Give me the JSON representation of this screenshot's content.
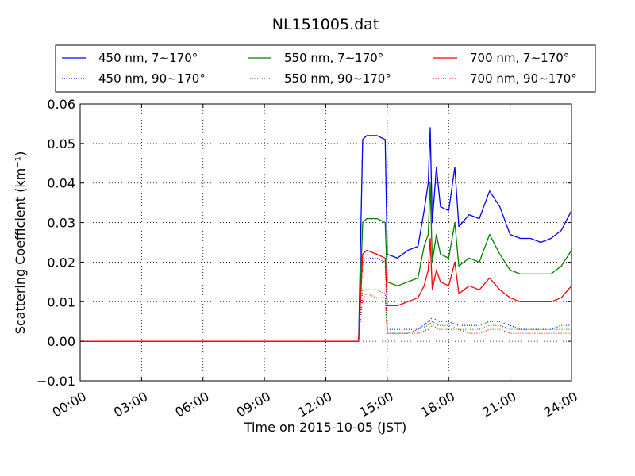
{
  "chart_data": {
    "type": "line",
    "title": "NL151005.dat",
    "xlabel": "Time on 2015-10-05 (JST)",
    "ylabel": "Scattering Coefficient (km⁻¹)",
    "x_unit": "hours",
    "xlim": [
      0,
      24
    ],
    "ylim": [
      -0.01,
      0.06
    ],
    "x_ticks": [
      0,
      3,
      6,
      9,
      12,
      15,
      18,
      21,
      24
    ],
    "x_tick_labels": [
      "00:00",
      "03:00",
      "06:00",
      "09:00",
      "12:00",
      "15:00",
      "18:00",
      "21:00",
      "24:00"
    ],
    "y_ticks": [
      -0.01,
      0.0,
      0.01,
      0.02,
      0.03,
      0.04,
      0.05,
      0.06
    ],
    "y_tick_labels": [
      "−0.01",
      "0.00",
      "0.01",
      "0.02",
      "0.03",
      "0.04",
      "0.05",
      "0.06"
    ],
    "grid": true,
    "legend_position": "top",
    "series": [
      {
        "name": "450 nm, 7∼170°",
        "color": "#0000ff",
        "style": "solid",
        "x": [
          0,
          13.6,
          13.8,
          14.0,
          14.5,
          14.9,
          15.0,
          15.5,
          16.0,
          16.5,
          16.8,
          17.0,
          17.1,
          17.2,
          17.4,
          17.6,
          18.0,
          18.3,
          18.5,
          19.0,
          19.5,
          20.0,
          20.5,
          21.0,
          21.5,
          22.0,
          22.5,
          23.0,
          23.5,
          24.0
        ],
        "y": [
          0.0,
          0.0,
          0.051,
          0.052,
          0.052,
          0.051,
          0.022,
          0.021,
          0.023,
          0.024,
          0.033,
          0.04,
          0.054,
          0.03,
          0.044,
          0.034,
          0.033,
          0.044,
          0.029,
          0.032,
          0.031,
          0.038,
          0.034,
          0.027,
          0.026,
          0.026,
          0.025,
          0.026,
          0.028,
          0.033
        ]
      },
      {
        "name": "550 nm, 7∼170°",
        "color": "#008000",
        "style": "solid",
        "x": [
          0,
          13.6,
          13.8,
          14.0,
          14.5,
          14.9,
          15.0,
          15.5,
          16.0,
          16.5,
          16.8,
          17.0,
          17.1,
          17.2,
          17.4,
          17.6,
          18.0,
          18.3,
          18.5,
          19.0,
          19.5,
          20.0,
          20.5,
          21.0,
          21.5,
          22.0,
          22.5,
          23.0,
          23.5,
          24.0
        ],
        "y": [
          0.0,
          0.0,
          0.03,
          0.031,
          0.031,
          0.03,
          0.015,
          0.014,
          0.015,
          0.016,
          0.024,
          0.027,
          0.04,
          0.02,
          0.027,
          0.022,
          0.021,
          0.03,
          0.019,
          0.021,
          0.02,
          0.027,
          0.022,
          0.018,
          0.017,
          0.017,
          0.017,
          0.017,
          0.019,
          0.023
        ]
      },
      {
        "name": "700 nm, 7∼170°",
        "color": "#ff0000",
        "style": "solid",
        "x": [
          0,
          13.6,
          13.8,
          14.0,
          14.5,
          14.9,
          15.0,
          15.5,
          16.0,
          16.5,
          16.8,
          17.0,
          17.1,
          17.2,
          17.4,
          17.6,
          18.0,
          18.3,
          18.5,
          19.0,
          19.5,
          20.0,
          20.5,
          21.0,
          21.5,
          22.0,
          22.5,
          23.0,
          23.5,
          24.0
        ],
        "y": [
          0.0,
          0.0,
          0.022,
          0.023,
          0.022,
          0.021,
          0.009,
          0.009,
          0.01,
          0.011,
          0.014,
          0.018,
          0.026,
          0.013,
          0.018,
          0.015,
          0.014,
          0.02,
          0.012,
          0.014,
          0.013,
          0.016,
          0.013,
          0.011,
          0.01,
          0.01,
          0.01,
          0.01,
          0.011,
          0.014
        ]
      },
      {
        "name": "450 nm, 90∼170°",
        "color": "#0000ff",
        "style": "dotted",
        "x": [
          0,
          13.6,
          13.8,
          14.0,
          14.5,
          14.9,
          15.0,
          15.5,
          16.0,
          16.5,
          17.0,
          17.2,
          17.5,
          18.0,
          18.5,
          19.0,
          19.5,
          20.0,
          20.5,
          21.0,
          21.5,
          22.0,
          22.5,
          23.0,
          23.5,
          24.0
        ],
        "y": [
          0.0,
          0.0,
          0.02,
          0.021,
          0.021,
          0.02,
          0.003,
          0.003,
          0.003,
          0.003,
          0.005,
          0.006,
          0.005,
          0.005,
          0.004,
          0.004,
          0.004,
          0.005,
          0.005,
          0.004,
          0.003,
          0.003,
          0.003,
          0.003,
          0.004,
          0.004
        ]
      },
      {
        "name": "550 nm, 90∼170°",
        "color": "#008000",
        "style": "dotted",
        "x": [
          0,
          13.6,
          13.8,
          14.0,
          14.5,
          14.9,
          15.0,
          15.5,
          16.0,
          16.5,
          17.0,
          17.2,
          17.5,
          18.0,
          18.5,
          19.0,
          19.5,
          20.0,
          20.5,
          21.0,
          21.5,
          22.0,
          22.5,
          23.0,
          23.5,
          24.0
        ],
        "y": [
          0.0,
          0.0,
          0.013,
          0.013,
          0.013,
          0.012,
          0.002,
          0.002,
          0.002,
          0.003,
          0.004,
          0.005,
          0.004,
          0.004,
          0.003,
          0.003,
          0.003,
          0.004,
          0.004,
          0.003,
          0.003,
          0.003,
          0.003,
          0.003,
          0.003,
          0.003
        ]
      },
      {
        "name": "700 nm, 90∼170°",
        "color": "#ff0000",
        "style": "dotted",
        "x": [
          0,
          13.6,
          13.8,
          14.0,
          14.5,
          14.9,
          15.0,
          15.5,
          16.0,
          16.5,
          17.0,
          17.2,
          17.5,
          18.0,
          18.5,
          19.0,
          19.5,
          20.0,
          20.5,
          21.0,
          21.5,
          22.0,
          22.5,
          23.0,
          23.5,
          24.0
        ],
        "y": [
          0.0,
          0.0,
          0.011,
          0.012,
          0.011,
          0.011,
          0.002,
          0.002,
          0.002,
          0.002,
          0.003,
          0.004,
          0.003,
          0.003,
          0.003,
          0.002,
          0.002,
          0.003,
          0.003,
          0.002,
          0.002,
          0.002,
          0.002,
          0.002,
          0.002,
          0.002
        ]
      }
    ]
  }
}
